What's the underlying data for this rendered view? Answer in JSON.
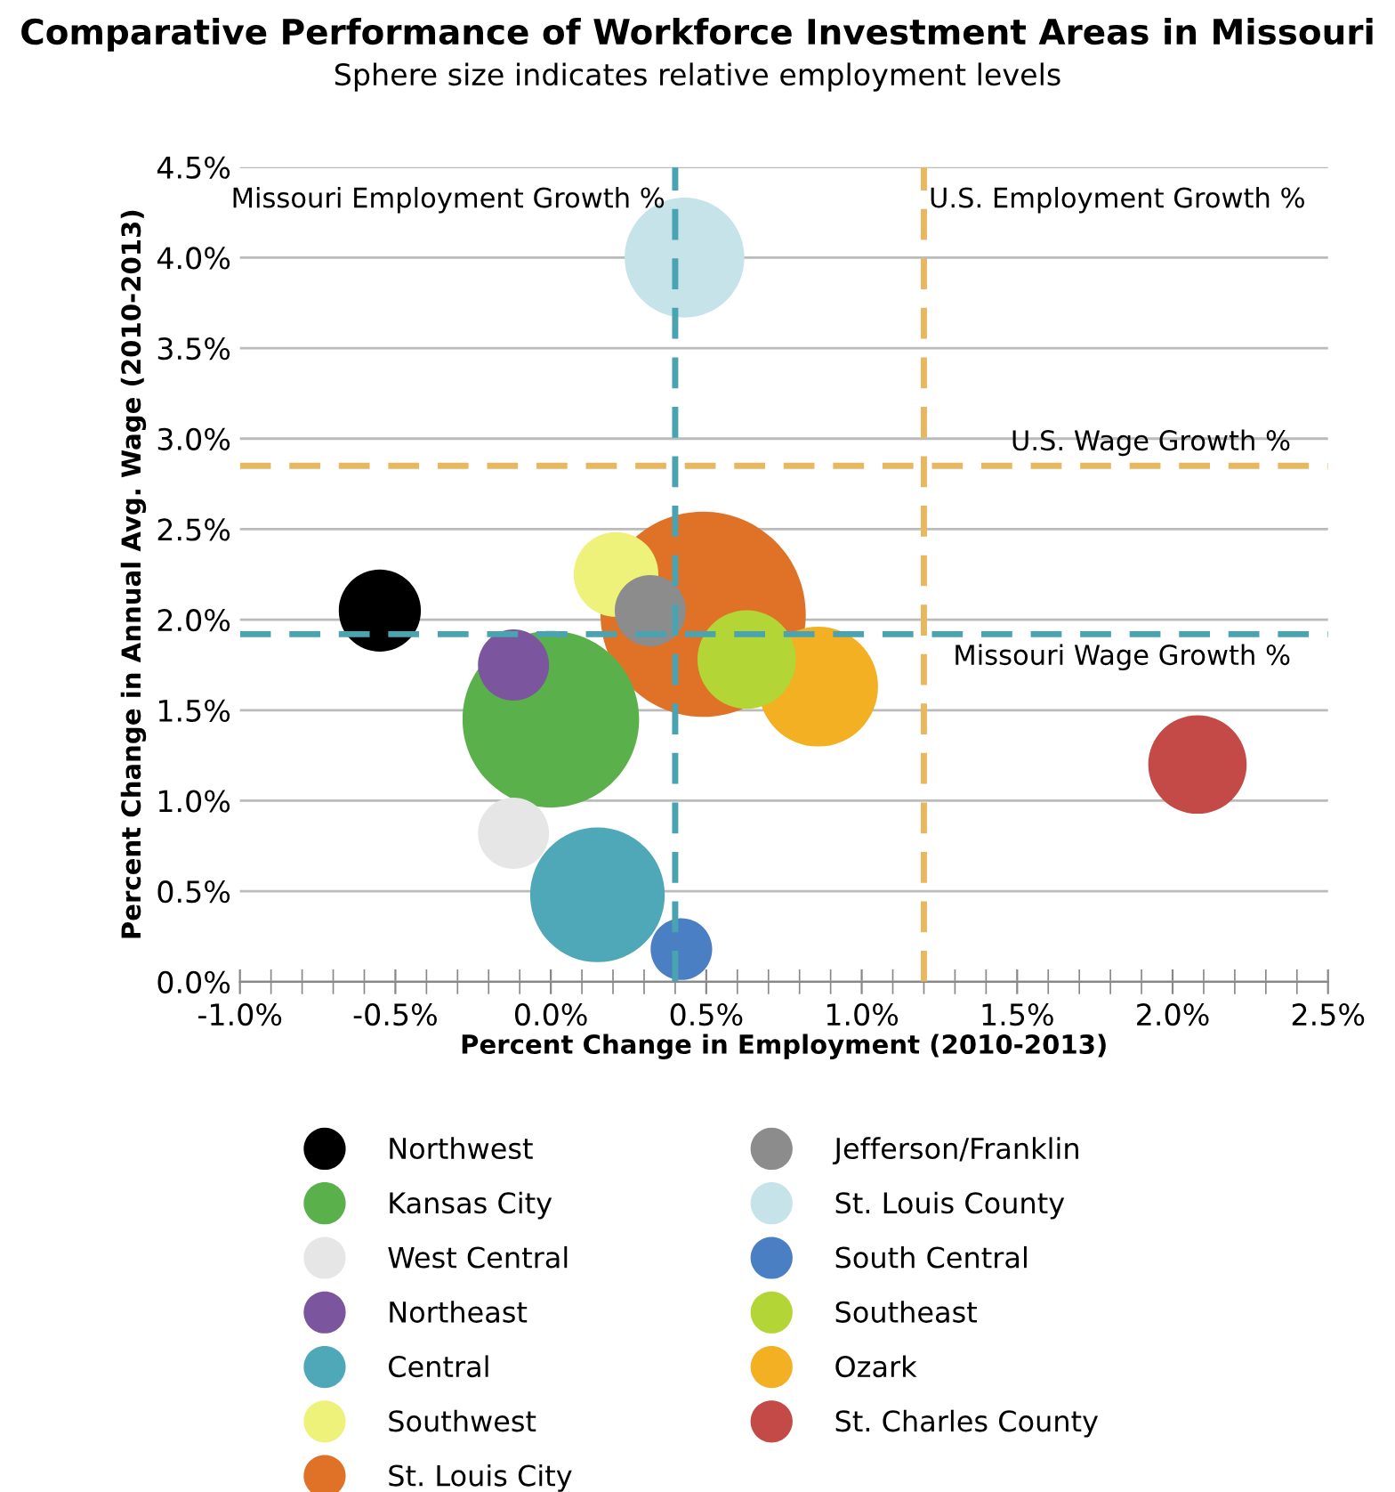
{
  "chart_data": {
    "type": "bubble",
    "title": "Comparative Performance of Workforce Investment Areas in Missouri",
    "subtitle": "Sphere size indicates relative employment levels",
    "xlabel": "Percent Change in Employment (2010-2013)",
    "ylabel": "Percent Change in Annual Avg. Wage (2010-2013)",
    "xlim": [
      -1.0,
      2.5
    ],
    "ylim": [
      0.0,
      4.5
    ],
    "xticks": [
      {
        "value": -1.0,
        "label": "-1.0%"
      },
      {
        "value": -0.5,
        "label": "-0.5%"
      },
      {
        "value": 0.0,
        "label": "0.0%"
      },
      {
        "value": 0.5,
        "label": "0.5%"
      },
      {
        "value": 1.0,
        "label": "1.0%"
      },
      {
        "value": 1.5,
        "label": "1.5%"
      },
      {
        "value": 2.0,
        "label": "2.0%"
      },
      {
        "value": 2.5,
        "label": "2.5%"
      }
    ],
    "yticks": [
      {
        "value": 0.0,
        "label": "0.0%"
      },
      {
        "value": 0.5,
        "label": "0.5%"
      },
      {
        "value": 1.0,
        "label": "1.0%"
      },
      {
        "value": 1.5,
        "label": "1.5%"
      },
      {
        "value": 2.0,
        "label": "2.0%"
      },
      {
        "value": 2.5,
        "label": "2.5%"
      },
      {
        "value": 3.0,
        "label": "3.0%"
      },
      {
        "value": 3.5,
        "label": "3.5%"
      },
      {
        "value": 4.0,
        "label": "4.0%"
      },
      {
        "value": 4.5,
        "label": "4.5%"
      }
    ],
    "grid": "y",
    "legend": "bottom",
    "series": [
      {
        "name": "Northwest",
        "color": "#000000",
        "x": [
          -0.55
        ],
        "values": [
          2.05
        ],
        "sizes": [
          0.16
        ]
      },
      {
        "name": "Kansas City",
        "color": "#5ab04a",
        "x": [
          0.0
        ],
        "values": [
          1.45
        ],
        "sizes": [
          0.74
        ]
      },
      {
        "name": "West Central",
        "color": "#e6e6e6",
        "x": [
          -0.12
        ],
        "values": [
          0.82
        ],
        "sizes": [
          0.12
        ]
      },
      {
        "name": "Northeast",
        "color": "#7b559e",
        "x": [
          -0.12
        ],
        "values": [
          1.75
        ],
        "sizes": [
          0.12
        ]
      },
      {
        "name": "Central",
        "color": "#4fa8b8",
        "x": [
          0.15
        ],
        "values": [
          0.48
        ],
        "sizes": [
          0.43
        ]
      },
      {
        "name": "Southwest",
        "color": "#eef27a",
        "x": [
          0.21
        ],
        "values": [
          2.25
        ],
        "sizes": [
          0.17
        ]
      },
      {
        "name": "St. Louis City",
        "color": "#e07228",
        "x": [
          0.49
        ],
        "values": [
          2.03
        ],
        "sizes": [
          1
        ]
      },
      {
        "name": "Jefferson/Franklin",
        "color": "#8c8c8c",
        "x": [
          0.32
        ],
        "values": [
          2.05
        ],
        "sizes": [
          0.12
        ]
      },
      {
        "name": "St. Louis County",
        "color": "#c6e3ea",
        "x": [
          0.43
        ],
        "values": [
          4.0
        ],
        "sizes": [
          0.34
        ]
      },
      {
        "name": "South Central",
        "color": "#4a7fc4",
        "x": [
          0.42
        ],
        "values": [
          0.18
        ],
        "sizes": [
          0.09
        ]
      },
      {
        "name": "Southeast",
        "color": "#b3d535",
        "x": [
          0.63
        ],
        "values": [
          1.78
        ],
        "sizes": [
          0.23
        ]
      },
      {
        "name": "Ozark",
        "color": "#f2b022",
        "x": [
          0.86
        ],
        "values": [
          1.63
        ],
        "sizes": [
          0.34
        ]
      },
      {
        "name": "St. Charles County",
        "color": "#c44a48",
        "x": [
          2.08
        ],
        "values": [
          1.2
        ],
        "sizes": [
          0.23
        ]
      }
    ],
    "ref_lines": [
      {
        "axis": "x",
        "value": 0.4,
        "label": "Missouri Employment Growth %",
        "color": "#4aa3b0",
        "line_style": "dashed"
      },
      {
        "axis": "x",
        "value": 1.2,
        "label": "U.S. Employment Growth %",
        "color": "#e8b860",
        "line_style": "dashed"
      },
      {
        "axis": "y",
        "value": 2.85,
        "label": "U.S. Wage Growth %",
        "color": "#e8b860",
        "line_style": "dashed"
      },
      {
        "axis": "y",
        "value": 1.92,
        "label": "Missouri Wage Growth %",
        "color": "#4aa3b0",
        "line_style": "dashed"
      }
    ]
  }
}
